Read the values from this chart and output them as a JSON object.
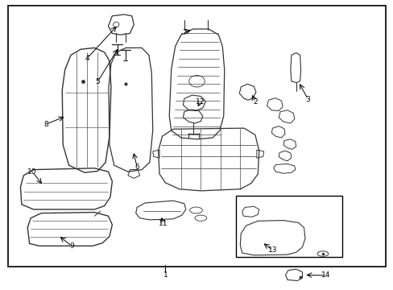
{
  "background_color": "#ffffff",
  "border_color": "#000000",
  "line_color": "#333333",
  "text_color": "#000000",
  "fig_width": 4.89,
  "fig_height": 3.6,
  "dpi": 100
}
